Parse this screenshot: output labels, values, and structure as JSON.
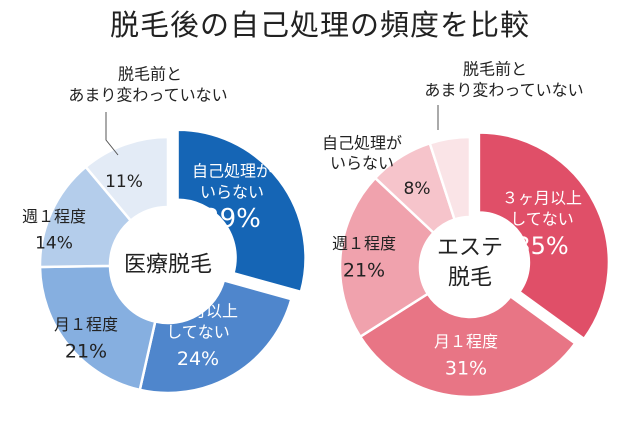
{
  "title": "脱毛後の自己処理の頻度を比較",
  "chart_data": [
    {
      "type": "pie",
      "center_label": [
        "医療脱毛"
      ],
      "categories": [
        "自己処理がいらない",
        "3ヶ月以上してない",
        "月1程度",
        "週1程度",
        "脱毛前とあまり変わっていない"
      ],
      "values": [
        29,
        24,
        21,
        14,
        11
      ],
      "colors": [
        "#1565b5",
        "#4f86cc",
        "#86afe0",
        "#b4cdeb",
        "#e3ebf6"
      ],
      "slice_labels": [
        {
          "lines": [
            "自己処理が",
            "いらない"
          ],
          "value": "29%"
        },
        {
          "lines": [
            "３ヶ月以上",
            "してない"
          ],
          "value": "24%"
        },
        {
          "lines": [
            "月１程度"
          ],
          "value": "21%"
        },
        {
          "lines": [
            "週１程度"
          ],
          "value": "14%"
        },
        {
          "lines": [],
          "value": "11%"
        }
      ],
      "callout": [
        "脱毛前と",
        "あまり変わっていない"
      ]
    },
    {
      "type": "pie",
      "center_label": [
        "エステ",
        "脱毛"
      ],
      "categories": [
        "3ヶ月以上してない",
        "月1程度",
        "週1程度",
        "自己処理がいらない",
        "脱毛前とあまり変わっていない"
      ],
      "values": [
        35,
        31,
        21,
        8,
        5
      ],
      "colors": [
        "#e04f68",
        "#e87585",
        "#f0a2ad",
        "#f6c4cb",
        "#fae4e7"
      ],
      "slice_labels": [
        {
          "lines": [
            "３ヶ月以上",
            "してない"
          ],
          "value": "35%"
        },
        {
          "lines": [
            "月１程度"
          ],
          "value": "31%"
        },
        {
          "lines": [
            "週１程度"
          ],
          "value": "21%"
        },
        {
          "lines": [],
          "value": "8%"
        },
        {
          "lines": [],
          "value": ""
        }
      ],
      "callouts": [
        [
          "自己処理が",
          "いらない"
        ],
        [
          "脱毛前と",
          "あまり変わっていない"
        ]
      ]
    }
  ]
}
